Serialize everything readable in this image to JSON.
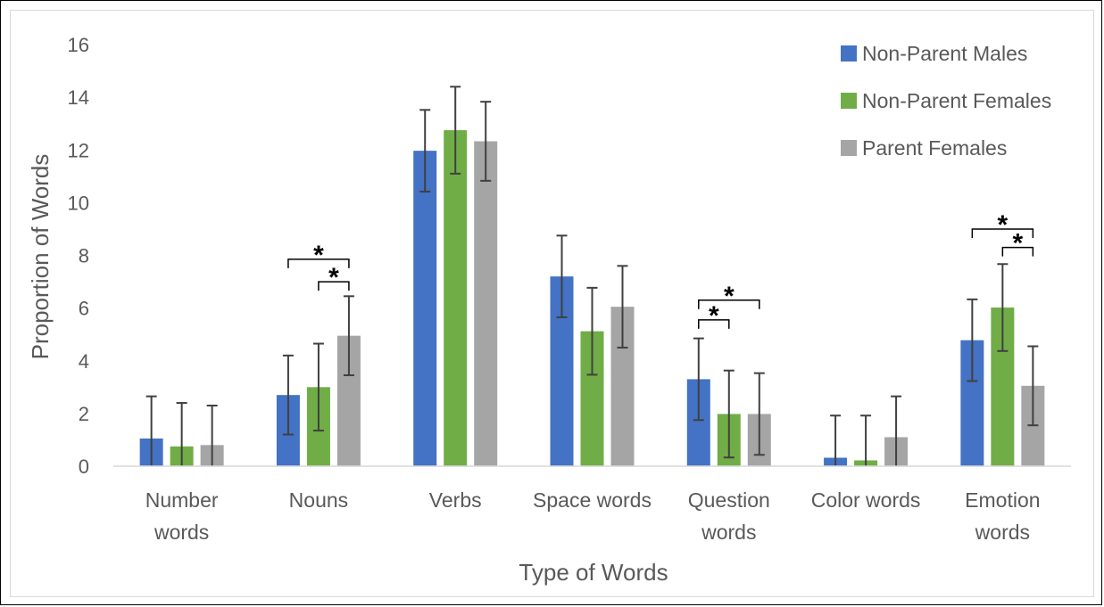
{
  "chart_data": {
    "type": "bar",
    "title": "",
    "xlabel": "Type of Words",
    "ylabel": "Proportion of Words",
    "ylim": [
      0,
      16
    ],
    "yticks": [
      "0",
      "2",
      "4",
      "6",
      "8",
      "10",
      "12",
      "14",
      "16"
    ],
    "grid": false,
    "legend_position": "top-right",
    "categories": [
      [
        "Number",
        "words"
      ],
      [
        "Nouns"
      ],
      [
        "Verbs"
      ],
      [
        "Space words"
      ],
      [
        "Question",
        "words"
      ],
      [
        "Color words"
      ],
      [
        "Emotion",
        "words"
      ]
    ],
    "series": [
      {
        "name": "Non-Parent Males",
        "color": "#4472c4",
        "values": [
          1.05,
          2.7,
          11.97,
          7.2,
          3.3,
          0.32,
          4.78
        ],
        "errors": [
          1.6,
          1.5,
          1.55,
          1.55,
          1.55,
          1.6,
          1.55
        ]
      },
      {
        "name": "Non-Parent Females",
        "color": "#70ad47",
        "values": [
          0.75,
          3.0,
          12.75,
          5.12,
          1.98,
          0.22,
          6.02
        ],
        "errors": [
          1.65,
          1.65,
          1.65,
          1.65,
          1.65,
          1.7,
          1.65
        ]
      },
      {
        "name": "Parent Females",
        "color": "#a5a5a5",
        "values": [
          0.8,
          4.95,
          12.33,
          6.05,
          1.98,
          1.1,
          3.05
        ],
        "errors": [
          1.5,
          1.5,
          1.5,
          1.55,
          1.55,
          1.55,
          1.5
        ]
      }
    ],
    "annotations": [
      {
        "category": 1,
        "from": 0,
        "to": 2,
        "y": 7.85,
        "label": "*"
      },
      {
        "category": 1,
        "from": 1,
        "to": 2,
        "y": 7.0,
        "label": "*"
      },
      {
        "category": 4,
        "from": 0,
        "to": 2,
        "y": 6.3,
        "label": "*"
      },
      {
        "category": 4,
        "from": 0,
        "to": 1,
        "y": 5.55,
        "label": "*"
      },
      {
        "category": 6,
        "from": 0,
        "to": 2,
        "y": 9.0,
        "label": "*"
      },
      {
        "category": 6,
        "from": 1,
        "to": 2,
        "y": 8.3,
        "label": "*"
      }
    ]
  }
}
